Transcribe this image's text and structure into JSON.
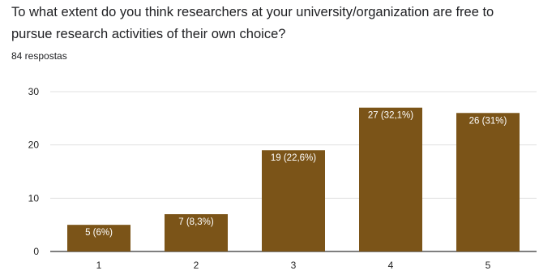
{
  "question": {
    "title": "To what extent do you think researchers at your university/organization are free to pursue research activities of their own choice?",
    "responses": "84 respostas"
  },
  "colors": {
    "bar": "#7b5418",
    "grid": "#e0e0e0",
    "axis": "#333333",
    "label": "#ffffff"
  },
  "chart_data": {
    "type": "bar",
    "categories": [
      "1",
      "2",
      "3",
      "4",
      "5"
    ],
    "values": [
      5,
      7,
      19,
      27,
      26
    ],
    "data_labels": [
      "5 (6%)",
      "7 (8,3%)",
      "19 (22,6%)",
      "27 (32,1%)",
      "26 (31%)"
    ],
    "y_ticks": [
      0,
      10,
      20,
      30
    ],
    "ylim": [
      0,
      30
    ],
    "grid": true,
    "legend": "none"
  }
}
